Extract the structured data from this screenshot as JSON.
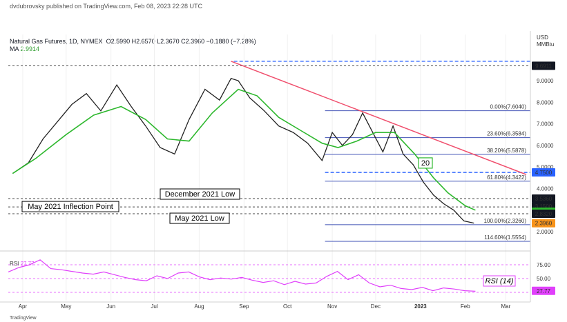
{
  "header": "dvdubrovsky published on TradingView.com, Feb 08, 2023 22:28 UTC",
  "symbol": {
    "name": "Natural Gas Futures, 1D, NYMEX",
    "ohlc": "O2.5990  H2.6570  L2.3670  C2.3960  −0.1880 (−7.28%)"
  },
  "ma": {
    "label": "MA",
    "value": "2.9914"
  },
  "rsi": {
    "label": "RSI",
    "value": "27.77",
    "box": "RSI (14)",
    "badge": "27.77"
  },
  "ma_box": "20",
  "footer": "TradingView",
  "colors": {
    "price_line": "#222222",
    "ma": "#2eb82e",
    "trendline": "#f0506e",
    "fib_line": "#3f51b5",
    "rsi": "#e040fb",
    "current_badge": "#f7931a"
  },
  "chart_data": {
    "type": "line",
    "title": "",
    "currency_label": [
      "USD",
      "MMBtu"
    ],
    "ylim": [
      1.3,
      10.5
    ],
    "y_ticks": [
      2.0,
      3.0,
      4.0,
      5.0,
      6.0,
      7.0,
      8.0,
      9.0
    ],
    "y_tick_labels": [
      "2.0000",
      "3.0000",
      "4.0000",
      "5.0000",
      "6.0000",
      "7.0000",
      "8.0000",
      "9.0000"
    ],
    "x_labels": [
      "Apr",
      "May",
      "Jun",
      "Jul",
      "Aug",
      "Sep",
      "Oct",
      "Nov",
      "Dec",
      "2023",
      "Feb",
      "Mar"
    ],
    "series": [
      {
        "name": "",
        "x": [
          "2021-03-25",
          "2021-04-05",
          "2021-04-15",
          "2021-04-25",
          "2021-05-05",
          "2021-05-15",
          "2021-05-25",
          "2021-06-05",
          "2021-06-15",
          "2021-06-25",
          "2021-07-05",
          "2021-07-15",
          "2021-07-25",
          "2021-08-05",
          "2021-08-15",
          "2021-08-23",
          "2021-08-28",
          "2021-09-05",
          "2021-09-15",
          "2021-09-25",
          "2021-10-05",
          "2021-10-15",
          "2021-10-25",
          "2021-11-01",
          "2021-11-08",
          "2021-11-15",
          "2021-11-22",
          "2021-11-29",
          "2021-12-06",
          "2021-12-13",
          "2021-12-20",
          "2021-12-27",
          "2022-01-03",
          "2022-01-10",
          "2022-01-17",
          "2022-01-24",
          "2022-01-31",
          "2022-02-07"
        ],
        "values": [
          4.7,
          5.2,
          6.3,
          7.1,
          7.9,
          8.4,
          7.6,
          8.8,
          7.8,
          6.9,
          5.9,
          5.6,
          7.2,
          8.6,
          8.1,
          9.1,
          9.0,
          8.2,
          7.6,
          6.9,
          6.6,
          6.1,
          5.3,
          6.6,
          6.0,
          6.5,
          7.5,
          6.6,
          5.7,
          6.9,
          5.6,
          5.1,
          4.3,
          3.7,
          3.3,
          3.0,
          2.5,
          2.4
        ]
      },
      {
        "name": "",
        "x": [
          "2021-03-25",
          "2021-04-10",
          "2021-05-01",
          "2021-05-20",
          "2021-06-08",
          "2021-06-25",
          "2021-07-10",
          "2021-07-25",
          "2021-08-10",
          "2021-08-28",
          "2021-09-10",
          "2021-09-25",
          "2021-10-10",
          "2021-10-25",
          "2021-11-05",
          "2021-11-18",
          "2021-12-01",
          "2021-12-14",
          "2021-12-28",
          "2022-01-10",
          "2022-01-20",
          "2022-02-01",
          "2022-02-08"
        ],
        "values": [
          4.7,
          5.4,
          6.5,
          7.4,
          7.8,
          7.2,
          6.3,
          6.2,
          7.5,
          8.6,
          8.3,
          7.3,
          6.7,
          6.1,
          5.9,
          6.2,
          6.6,
          6.6,
          5.6,
          4.5,
          3.8,
          3.2,
          3.0
        ]
      }
    ],
    "fib_levels": [
      {
        "label": "0.00%(7.6040)",
        "value": 7.604
      },
      {
        "label": "23.60%(6.3584)",
        "value": 6.3584
      },
      {
        "label": "38.20%(5.5878)",
        "value": 5.5878
      },
      {
        "label": "61.80%(4.3422)",
        "value": 4.3422
      },
      {
        "label": "100.00%(2.3260)",
        "value": 2.326
      },
      {
        "label": "114.60%(1.5554)",
        "value": 1.5554
      }
    ],
    "horizontal_levels": [
      {
        "label": "December 2021 Low",
        "value": 3.536
      },
      {
        "label": "May 2021 Inflection Point",
        "value": 3.15
      },
      {
        "label": "May 2021 Low",
        "value": 2.832
      }
    ],
    "right_badges": [
      {
        "text": "9.6911",
        "value": 9.6911
      },
      {
        "text": "4.7500",
        "value": 4.75
      },
      {
        "text": "3.5360",
        "value": 3.536
      },
      {
        "text": "3.1500",
        "value": 3.15
      },
      {
        "text": "2.9914",
        "value": 2.9914
      },
      {
        "text": "2.8320",
        "value": 2.832
      },
      {
        "text": "2.3960",
        "value": 2.396
      }
    ],
    "rsi": {
      "ylim": [
        15,
        90
      ],
      "ticks": [
        75,
        50
      ],
      "tick_labels": [
        "75.00",
        "50.00"
      ],
      "values": [
        62,
        70,
        75,
        84,
        68,
        66,
        63,
        60,
        58,
        62,
        57,
        52,
        48,
        46,
        55,
        50,
        60,
        62,
        53,
        48,
        51,
        49,
        52,
        47,
        43,
        46,
        39,
        45,
        40,
        42,
        54,
        63,
        48,
        57,
        42,
        35,
        38,
        32,
        30,
        34,
        28,
        33,
        31,
        28,
        27
      ]
    }
  }
}
